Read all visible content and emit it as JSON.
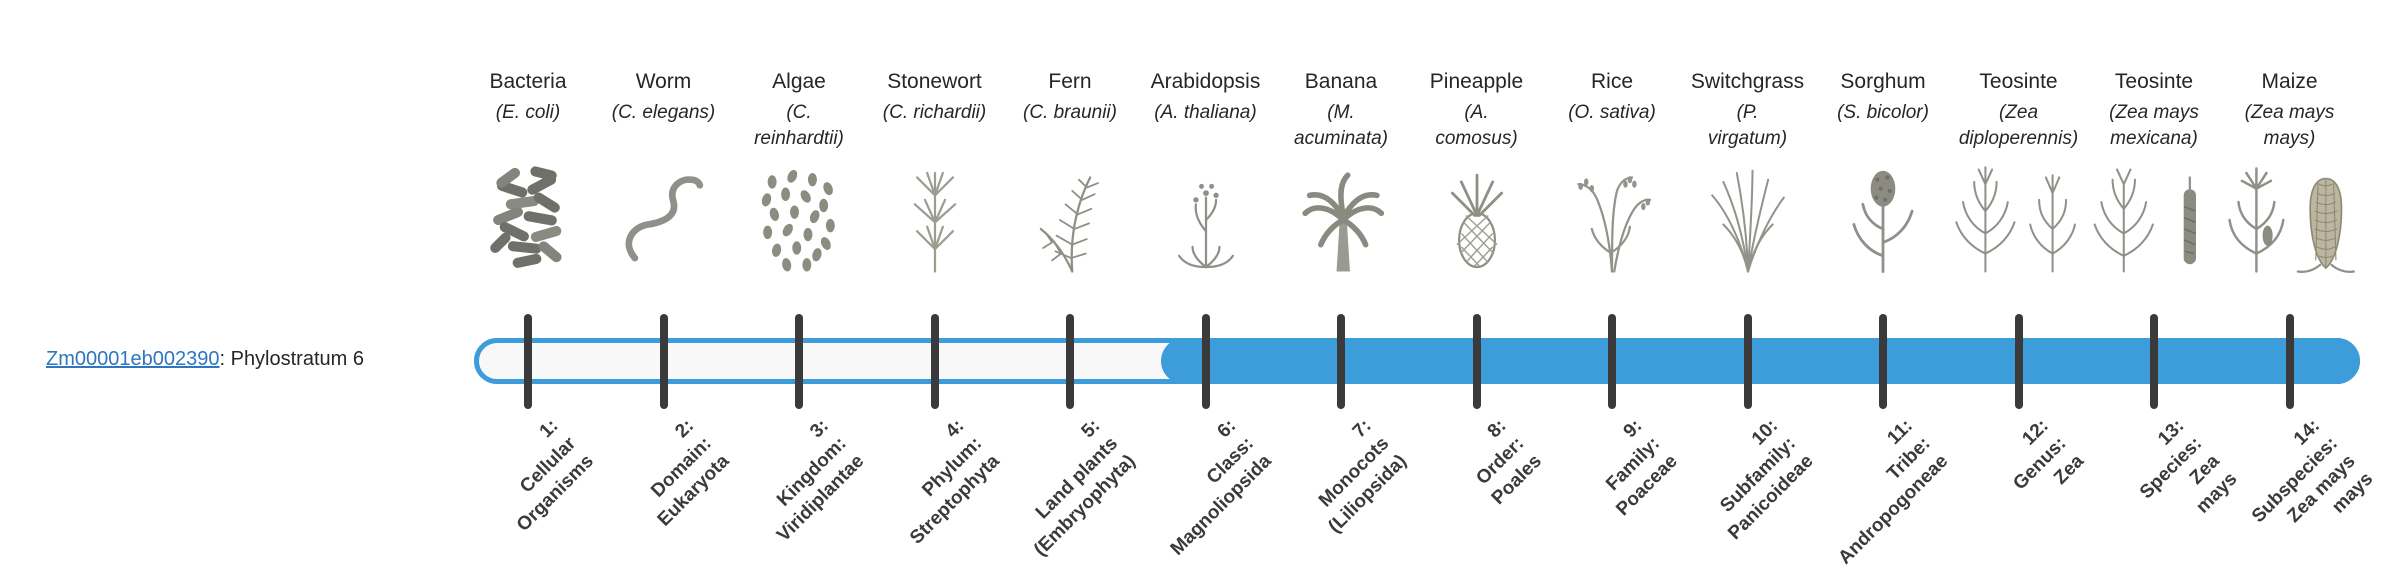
{
  "gene": {
    "id": "Zm00001eb002390",
    "suffix": ": Phylostratum 6"
  },
  "timeline": {
    "phylostratum": 6,
    "total_strata": 14
  },
  "colors": {
    "accent": "#3d9dda",
    "tick": "#3a3a3a",
    "track_background": "#f8f8f8",
    "link": "#2e76c0"
  },
  "organisms": [
    {
      "name": "Bacteria",
      "scientific": "(E. coli)",
      "icon": "bacteria-icon"
    },
    {
      "name": "Worm",
      "scientific": "(C. elegans)",
      "icon": "worm-icon"
    },
    {
      "name": "Algae",
      "scientific": "(C.\nreinhardtii)",
      "icon": "algae-icon"
    },
    {
      "name": "Stonewort",
      "scientific": "(C. richardii)",
      "icon": "stonewort-icon"
    },
    {
      "name": "Fern",
      "scientific": "(C. braunii)",
      "icon": "fern-icon"
    },
    {
      "name": "Arabidopsis",
      "scientific": "(A. thaliana)",
      "icon": "arabidopsis-icon"
    },
    {
      "name": "Banana",
      "scientific": "(M.\nacuminata)",
      "icon": "banana-icon"
    },
    {
      "name": "Pineapple",
      "scientific": "(A.\ncomosus)",
      "icon": "pineapple-icon"
    },
    {
      "name": "Rice",
      "scientific": "(O. sativa)",
      "icon": "rice-icon"
    },
    {
      "name": "Switchgrass",
      "scientific": "(P.\nvirgatum)",
      "icon": "switchgrass-icon"
    },
    {
      "name": "Sorghum",
      "scientific": "(S. bicolor)",
      "icon": "sorghum-icon"
    },
    {
      "name": "Teosinte",
      "scientific": "(Zea\ndiploperennis)",
      "icon": "teosinte-diploperennis-icon"
    },
    {
      "name": "Teosinte",
      "scientific": "(Zea mays\nmexicana)",
      "icon": "teosinte-mexicana-icon"
    },
    {
      "name": "Maize",
      "scientific": "(Zea mays\nmays)",
      "icon": "maize-icon"
    }
  ],
  "strata": [
    {
      "label": "1:\nCellular\nOrganisms"
    },
    {
      "label": "2:\nDomain:\nEukaryota"
    },
    {
      "label": "3:\nKingdom:\nViridiplantae"
    },
    {
      "label": "4:\nPhylum:\nStreptophyta"
    },
    {
      "label": "5:\nLand plants\n(Embryophyta)"
    },
    {
      "label": "6:\nClass:\nMagnoliopsida"
    },
    {
      "label": "7:\nMonocots\n(Liliopsida)"
    },
    {
      "label": "8:\nOrder:\nPoales"
    },
    {
      "label": "9:\nFamily:\nPoaceae"
    },
    {
      "label": "10:\nSubfamily:\nPanicoideae"
    },
    {
      "label": "11:\nTribe:\nAndropogoneae"
    },
    {
      "label": "12:\nGenus:\nZea"
    },
    {
      "label": "13:\nSpecies:\nZea\nmays"
    },
    {
      "label": "14:\nSubspecies:\nZea mays\nmays"
    }
  ]
}
